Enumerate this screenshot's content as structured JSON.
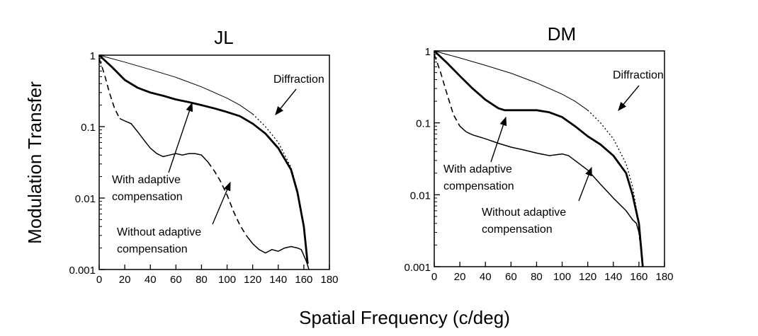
{
  "figure": {
    "ylabel": "Modulation Transfer",
    "xlabel": "Spatial Frequency (c/deg)"
  },
  "chart_data": [
    {
      "type": "line",
      "title": "JL",
      "xlim": [
        0,
        180
      ],
      "ylim": [
        0.001,
        1
      ],
      "yscale": "log",
      "grid": false,
      "xticks": [
        0,
        20,
        40,
        60,
        80,
        100,
        120,
        140,
        160,
        180
      ],
      "yticks": [
        {
          "value": 0.001,
          "label": "0.001"
        },
        {
          "value": 0.01,
          "label": "0.01"
        },
        {
          "value": 0.1,
          "label": "0.1"
        },
        {
          "value": 1,
          "label": "1"
        }
      ],
      "series": [
        {
          "name": "Diffraction",
          "style": "thin",
          "x": [
            0,
            20,
            40,
            60,
            80,
            100,
            110,
            120,
            130,
            140,
            150,
            155,
            160,
            163
          ],
          "y": [
            1,
            0.8,
            0.63,
            0.49,
            0.36,
            0.25,
            0.2,
            0.15,
            0.1,
            0.06,
            0.027,
            0.013,
            0.004,
            0.0012
          ]
        },
        {
          "name": "With adaptive compensation",
          "style": "thick",
          "x": [
            0,
            10,
            20,
            30,
            40,
            50,
            60,
            70,
            80,
            90,
            100,
            110,
            120,
            130,
            140,
            150,
            155,
            160,
            163
          ],
          "y": [
            1,
            0.68,
            0.45,
            0.35,
            0.3,
            0.27,
            0.24,
            0.22,
            0.2,
            0.18,
            0.16,
            0.14,
            0.11,
            0.08,
            0.05,
            0.025,
            0.012,
            0.004,
            0.0012
          ]
        },
        {
          "name": "Without adaptive compensation",
          "style": "mixed",
          "x": [
            0,
            4,
            8,
            12,
            16,
            20,
            25,
            30,
            35,
            40,
            45,
            50,
            55,
            60,
            65,
            70,
            75,
            80,
            85,
            90,
            95,
            100,
            105,
            110,
            115,
            120,
            125,
            130,
            135,
            140,
            145,
            150,
            155,
            158,
            162,
            164
          ],
          "y": [
            0.9,
            0.55,
            0.3,
            0.18,
            0.13,
            0.12,
            0.11,
            0.085,
            0.065,
            0.05,
            0.042,
            0.038,
            0.04,
            0.042,
            0.04,
            0.042,
            0.042,
            0.04,
            0.032,
            0.024,
            0.017,
            0.011,
            0.0065,
            0.0042,
            0.003,
            0.0023,
            0.0019,
            0.0017,
            0.0019,
            0.0018,
            0.002,
            0.0021,
            0.002,
            0.0019,
            0.0013,
            0.001
          ]
        }
      ],
      "annotations": [
        {
          "text": "Diffraction",
          "points_to": {
            "x": 127,
            "y": 0.11
          }
        },
        {
          "text": "With adaptive compensation",
          "points_to": {
            "x": 65,
            "y": 0.23
          }
        },
        {
          "text": "Without adaptive compensation",
          "points_to": {
            "x": 95,
            "y": 0.017
          }
        }
      ]
    },
    {
      "type": "line",
      "title": "DM",
      "xlim": [
        0,
        180
      ],
      "ylim": [
        0.001,
        1
      ],
      "yscale": "log",
      "grid": false,
      "xticks": [
        0,
        20,
        40,
        60,
        80,
        100,
        120,
        140,
        160,
        180
      ],
      "yticks": [
        {
          "value": 0.001,
          "label": "0.001"
        },
        {
          "value": 0.01,
          "label": "0.01"
        },
        {
          "value": 0.1,
          "label": "0.1"
        },
        {
          "value": 1,
          "label": "1"
        }
      ],
      "series": [
        {
          "name": "Diffraction",
          "style": "thin",
          "x": [
            0,
            20,
            40,
            60,
            80,
            100,
            110,
            120,
            130,
            140,
            150,
            155,
            160,
            163
          ],
          "y": [
            1,
            0.8,
            0.63,
            0.49,
            0.36,
            0.25,
            0.2,
            0.15,
            0.1,
            0.06,
            0.027,
            0.013,
            0.004,
            0.0012
          ]
        },
        {
          "name": "With adaptive compensation",
          "style": "thick",
          "x": [
            0,
            10,
            20,
            30,
            40,
            50,
            55,
            60,
            70,
            80,
            90,
            100,
            110,
            120,
            130,
            140,
            150,
            155,
            160,
            163
          ],
          "y": [
            1,
            0.68,
            0.45,
            0.3,
            0.21,
            0.16,
            0.15,
            0.15,
            0.15,
            0.15,
            0.14,
            0.12,
            0.09,
            0.065,
            0.05,
            0.035,
            0.02,
            0.01,
            0.004,
            0.001
          ]
        },
        {
          "name": "Without adaptive compensation",
          "style": "mixed",
          "x": [
            0,
            5,
            10,
            15,
            20,
            25,
            30,
            40,
            50,
            60,
            70,
            80,
            90,
            100,
            105,
            110,
            120,
            130,
            140,
            150,
            155,
            158,
            160,
            162,
            163
          ],
          "y": [
            0.9,
            0.5,
            0.25,
            0.13,
            0.09,
            0.075,
            0.068,
            0.06,
            0.052,
            0.046,
            0.042,
            0.038,
            0.035,
            0.037,
            0.035,
            0.03,
            0.022,
            0.014,
            0.009,
            0.006,
            0.0045,
            0.004,
            0.003,
            0.0015,
            0.001
          ]
        }
      ],
      "annotations": [
        {
          "text": "Diffraction",
          "points_to": {
            "x": 138,
            "y": 0.16
          }
        },
        {
          "text": "With adaptive compensation",
          "points_to": {
            "x": 55,
            "y": 0.13
          }
        },
        {
          "text": "Without adaptive compensation",
          "points_to": {
            "x": 115,
            "y": 0.028
          }
        }
      ]
    }
  ]
}
